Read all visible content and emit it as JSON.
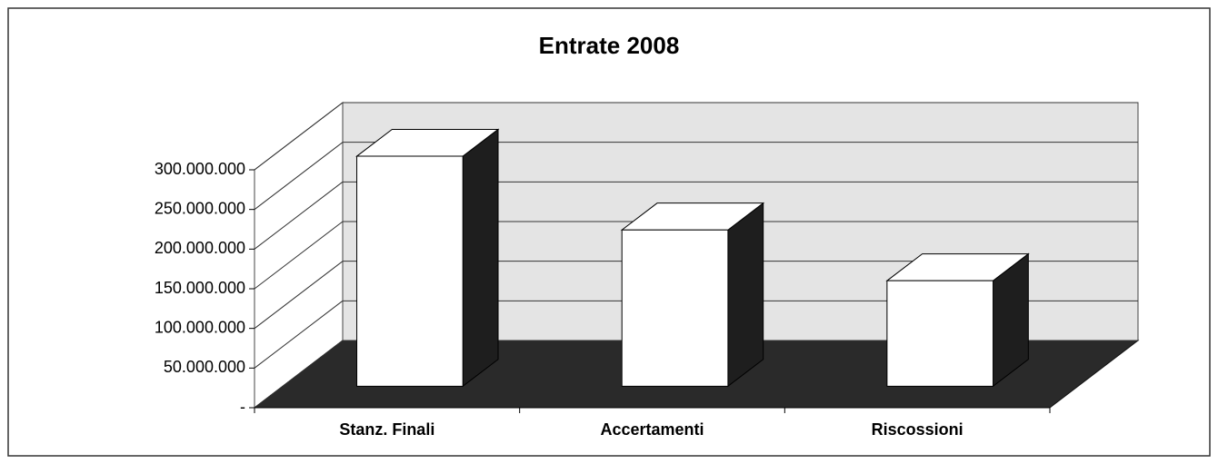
{
  "chart_data": {
    "type": "bar3d",
    "title": "Entrate 2008",
    "categories": [
      "Stanz. Finali",
      "Accertamenti",
      "Riscossioni"
    ],
    "values": [
      290000000,
      197000000,
      133000000
    ],
    "color": "#ffffff",
    "ylim": [
      0,
      300000000
    ],
    "yticks": [
      {
        "value": 0,
        "label": "-"
      },
      {
        "value": 50000000,
        "label": "50.000.000"
      },
      {
        "value": 100000000,
        "label": "100.000.000"
      },
      {
        "value": 150000000,
        "label": "150.000.000"
      },
      {
        "value": 200000000,
        "label": "200.000.000"
      },
      {
        "value": 250000000,
        "label": "250.000.000"
      },
      {
        "value": 300000000,
        "label": "300.000.000"
      }
    ],
    "grid": true
  }
}
